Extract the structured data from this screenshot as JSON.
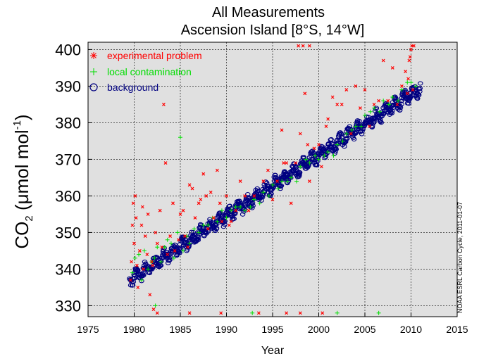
{
  "chart_data": {
    "type": "scatter",
    "title": "All Measurements",
    "subtitle": "Ascension Island [8°S, 14°W]",
    "xlabel": "Year",
    "ylabel_parts": {
      "prefix": "CO",
      "sub": "2",
      "units": " (μmol mol",
      "sup": "-1",
      "close": ")"
    },
    "xlim": [
      1975,
      2015
    ],
    "ylim": [
      327,
      402
    ],
    "x_ticks": [
      1975,
      1980,
      1985,
      1990,
      1995,
      2000,
      2005,
      2010,
      2015
    ],
    "y_ticks": [
      330,
      340,
      350,
      360,
      370,
      380,
      390,
      400
    ],
    "grid": true,
    "background_color": "#e0e0e0",
    "credit": "NOAA ESRL Carbon Cycle, 2011-01-07",
    "legend_position": "top-left",
    "series": [
      {
        "name": "experimental problem",
        "marker": "x",
        "color": "#ff0000",
        "points": [
          [
            1979.6,
            337
          ],
          [
            1979.7,
            342
          ],
          [
            1979.8,
            352
          ],
          [
            1979.9,
            358
          ],
          [
            1980.0,
            347
          ],
          [
            1980.1,
            360
          ],
          [
            1980.2,
            354
          ],
          [
            1980.3,
            341
          ],
          [
            1980.4,
            335
          ],
          [
            1980.6,
            345
          ],
          [
            1980.8,
            352
          ],
          [
            1980.9,
            357
          ],
          [
            1981.0,
            340
          ],
          [
            1981.2,
            349
          ],
          [
            1981.4,
            344
          ],
          [
            1981.5,
            355
          ],
          [
            1981.7,
            333
          ],
          [
            1981.9,
            342
          ],
          [
            1982.0,
            341
          ],
          [
            1982.1,
            329
          ],
          [
            1982.3,
            350
          ],
          [
            1982.5,
            347
          ],
          [
            1982.8,
            356
          ],
          [
            1983.0,
            346
          ],
          [
            1983.2,
            385
          ],
          [
            1983.4,
            369
          ],
          [
            1983.6,
            344
          ],
          [
            1983.9,
            349
          ],
          [
            1984.2,
            358
          ],
          [
            1984.4,
            345
          ],
          [
            1984.8,
            348
          ],
          [
            1985.0,
            355
          ],
          [
            1985.3,
            356
          ],
          [
            1985.5,
            349
          ],
          [
            1985.8,
            346
          ],
          [
            1986.0,
            363
          ],
          [
            1986.3,
            362
          ],
          [
            1986.6,
            354
          ],
          [
            1987.0,
            358
          ],
          [
            1987.2,
            359
          ],
          [
            1987.5,
            366
          ],
          [
            1987.8,
            360
          ],
          [
            1988.0,
            351
          ],
          [
            1988.3,
            361
          ],
          [
            1988.6,
            354
          ],
          [
            1989.0,
            367
          ],
          [
            1989.3,
            358
          ],
          [
            1989.5,
            353
          ],
          [
            1990.0,
            360
          ],
          [
            1990.3,
            352
          ],
          [
            1990.5,
            353
          ],
          [
            1991.0,
            356
          ],
          [
            1991.5,
            364
          ],
          [
            1992.0,
            360
          ],
          [
            1992.4,
            356
          ],
          [
            1993.0,
            360
          ],
          [
            1993.5,
            328
          ],
          [
            1994.0,
            364
          ],
          [
            1994.5,
            367
          ],
          [
            1995.0,
            359
          ],
          [
            1995.5,
            364
          ],
          [
            1996.0,
            378
          ],
          [
            1996.2,
            369
          ],
          [
            1996.5,
            369
          ],
          [
            1997.0,
            358
          ],
          [
            1997.5,
            369
          ],
          [
            1998.0,
            377
          ],
          [
            1998.5,
            388
          ],
          [
            1998.8,
            374
          ],
          [
            1999.0,
            364
          ],
          [
            1999.5,
            373
          ],
          [
            2000.0,
            374
          ],
          [
            2000.3,
            368
          ],
          [
            2000.8,
            379
          ],
          [
            2001.0,
            381
          ],
          [
            2001.5,
            387
          ],
          [
            2002.0,
            385
          ],
          [
            2002.5,
            385
          ],
          [
            2003.0,
            389
          ],
          [
            2003.5,
            377
          ],
          [
            2004.0,
            390
          ],
          [
            2004.5,
            384
          ],
          [
            2005.0,
            389
          ],
          [
            2005.5,
            379
          ],
          [
            2006.0,
            385
          ],
          [
            2006.5,
            386
          ],
          [
            2007.0,
            397
          ],
          [
            2007.5,
            386
          ],
          [
            2008.0,
            395
          ],
          [
            2008.5,
            385
          ],
          [
            2009.0,
            390
          ],
          [
            2009.4,
            394
          ],
          [
            2009.6,
            388
          ],
          [
            2009.7,
            392
          ],
          [
            2009.8,
            397
          ],
          [
            2009.9,
            398
          ],
          [
            2010.0,
            400
          ],
          [
            2010.1,
            401
          ],
          [
            2010.2,
            389
          ],
          [
            2010.3,
            401
          ],
          [
            1997.8,
            401
          ],
          [
            1998.3,
            401
          ],
          [
            1999.0,
            401
          ],
          [
            1982.5,
            328
          ],
          [
            1986.0,
            328
          ],
          [
            1989.4,
            328
          ],
          [
            1996.5,
            328
          ],
          [
            1998.0,
            328
          ],
          [
            2000.4,
            328
          ]
        ]
      },
      {
        "name": "local contamination",
        "marker": "+",
        "color": "#00dd00",
        "points": [
          [
            1979.8,
            339
          ],
          [
            1980.1,
            343
          ],
          [
            1980.5,
            344
          ],
          [
            1980.8,
            337
          ],
          [
            1981.1,
            345
          ],
          [
            1981.5,
            340
          ],
          [
            1981.9,
            342
          ],
          [
            1982.2,
            343
          ],
          [
            1982.5,
            346
          ],
          [
            1982.9,
            342
          ],
          [
            1983.3,
            346
          ],
          [
            1983.6,
            348
          ],
          [
            1984.0,
            347
          ],
          [
            1984.3,
            343
          ],
          [
            1984.7,
            350
          ],
          [
            1985.0,
            376
          ],
          [
            1985.3,
            345
          ],
          [
            1985.7,
            349
          ],
          [
            1986.0,
            347
          ],
          [
            1986.5,
            351
          ],
          [
            1987.0,
            350
          ],
          [
            1987.5,
            352
          ],
          [
            1988.0,
            352
          ],
          [
            1988.5,
            354
          ],
          [
            1989.0,
            353
          ],
          [
            1989.5,
            356
          ],
          [
            1990.0,
            354
          ],
          [
            1990.5,
            356
          ],
          [
            1991.0,
            357
          ],
          [
            1991.5,
            357
          ],
          [
            1992.0,
            356
          ],
          [
            1992.6,
            357
          ],
          [
            1993.0,
            359
          ],
          [
            1993.6,
            358
          ],
          [
            1994.0,
            361
          ],
          [
            1994.6,
            360
          ],
          [
            1995.0,
            363
          ],
          [
            1995.6,
            362
          ],
          [
            1996.0,
            364
          ],
          [
            1996.6,
            364
          ],
          [
            1997.0,
            365
          ],
          [
            1997.6,
            364
          ],
          [
            1998.0,
            368
          ],
          [
            1998.6,
            370
          ],
          [
            1999.0,
            369
          ],
          [
            1999.6,
            371
          ],
          [
            2000.0,
            370
          ],
          [
            2000.6,
            371
          ],
          [
            2001.0,
            372
          ],
          [
            2001.6,
            371
          ],
          [
            2002.0,
            374
          ],
          [
            2002.6,
            375
          ],
          [
            2003.0,
            377
          ],
          [
            2003.6,
            378
          ],
          [
            2004.0,
            379
          ],
          [
            2004.6,
            379
          ],
          [
            2005.0,
            382
          ],
          [
            2005.6,
            383
          ],
          [
            2006.0,
            384
          ],
          [
            2006.6,
            383
          ],
          [
            2007.0,
            386
          ],
          [
            2007.6,
            385
          ],
          [
            2008.0,
            387
          ],
          [
            2008.6,
            386
          ],
          [
            2009.0,
            389
          ],
          [
            2009.6,
            391
          ],
          [
            2010.0,
            391
          ],
          [
            2010.5,
            390
          ],
          [
            1982.3,
            330
          ],
          [
            1992.8,
            328
          ],
          [
            2002.0,
            328
          ],
          [
            2006.5,
            328
          ]
        ]
      },
      {
        "name": "background",
        "marker": "o",
        "color": "#000080",
        "trend": {
          "x_start": 1979.5,
          "x_end": 2011.0,
          "y_start": 337.0,
          "y_end": 389.5,
          "seasonal_amplitude": 1.2,
          "scatter": 1.3
        }
      }
    ]
  }
}
